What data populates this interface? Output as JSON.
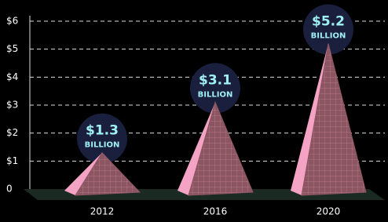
{
  "chart_data": {
    "type": "pyramid",
    "categories": [
      "2012",
      "2016",
      "2020"
    ],
    "values": [
      1.3,
      3.1,
      5.2
    ],
    "value_labels": [
      "$1.3",
      "$3.1",
      "$5.2"
    ],
    "unit_label": "BILLION",
    "ylim": [
      0,
      6
    ],
    "yticks": [
      0,
      {
        "value": 1,
        "label": "$1"
      },
      {
        "value": 2,
        "label": "$2"
      },
      {
        "value": 3,
        "label": "$3"
      },
      {
        "value": 4,
        "label": "$4"
      },
      {
        "value": 5,
        "label": "$5"
      },
      {
        "value": 6,
        "label": "$6"
      }
    ],
    "grid": true,
    "color": "#8c5562"
  }
}
